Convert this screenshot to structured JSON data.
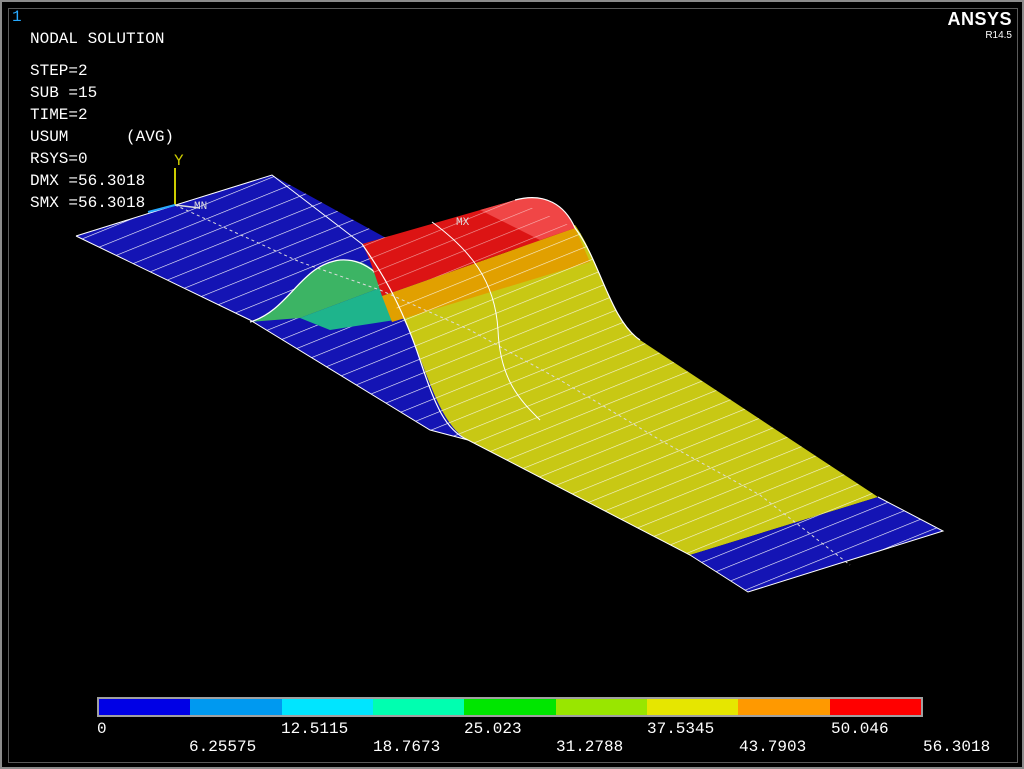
{
  "window_number": "1",
  "header": {
    "title": "NODAL SOLUTION",
    "lines": [
      "STEP=2",
      "SUB =15",
      "TIME=2",
      "USUM      (AVG)",
      "RSYS=0",
      "DMX =56.3018",
      "SMX =56.3018"
    ]
  },
  "logo": {
    "text": "ANSYS",
    "version": "R14.5"
  },
  "triad": {
    "axis_y": "Y",
    "axis_x": "X",
    "axis_z": "Z"
  },
  "markers": {
    "min": "MN",
    "max": "MX"
  },
  "legend": {
    "colors": [
      "#0000e6",
      "#0099f0",
      "#00e5ff",
      "#00ffb0",
      "#00e600",
      "#99e600",
      "#e6e600",
      "#ff9900",
      "#ff0000"
    ],
    "labels_top": [
      "0",
      "12.5115",
      "25.023",
      "37.5345",
      "50.046"
    ],
    "labels_bottom": [
      "6.25575",
      "18.7673",
      "31.2788",
      "43.7903",
      "56.3018"
    ]
  },
  "contour_colors": {
    "blue": "#1414b4",
    "yellow": "#c8c814",
    "yellow_bright": "#dcdc14",
    "orange": "#e1a000",
    "red": "#dc1414",
    "red_light": "#f04646",
    "green": "#3cb464",
    "teal": "#1eb48c",
    "mesh": "#ffffff"
  }
}
